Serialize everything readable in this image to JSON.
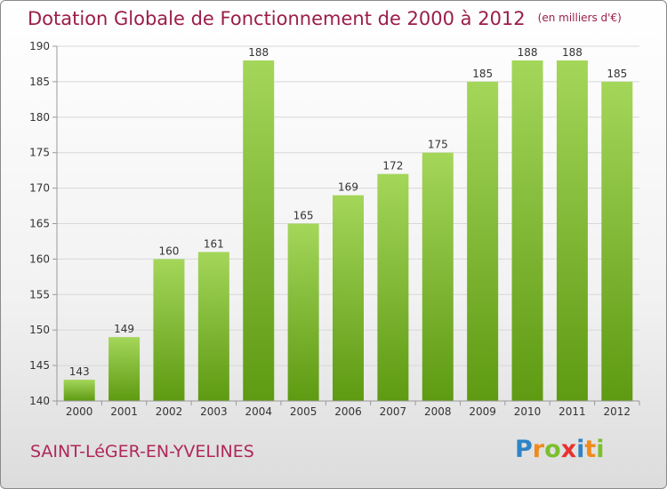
{
  "title": "Dotation Globale de Fonctionnement de 2000 à 2012",
  "subtitle": "(en milliers d'€)",
  "commune": "SAINT-LéGER-EN-YVELINES",
  "logo": {
    "letters": [
      "P",
      "r",
      "o",
      "x",
      "i",
      "t",
      "i"
    ],
    "colors": [
      "#2f84c6",
      "#f08a1c",
      "#7bbf2f",
      "#e8322f",
      "#2f84c6",
      "#f08a1c",
      "#7bbf2f"
    ]
  },
  "colors": {
    "bar_top": "#a4d65a",
    "bar_bottom": "#5e9a12",
    "axis": "#999999",
    "grid": "#d8d8d8"
  },
  "chart_data": {
    "type": "bar",
    "categories": [
      "2000",
      "2001",
      "2002",
      "2003",
      "2004",
      "2005",
      "2006",
      "2007",
      "2008",
      "2009",
      "2010",
      "2011",
      "2012"
    ],
    "values": [
      143,
      149,
      160,
      161,
      188,
      165,
      169,
      172,
      175,
      185,
      188,
      188,
      185
    ],
    "ylim": [
      140,
      190
    ],
    "yticks": [
      140,
      145,
      150,
      155,
      160,
      165,
      170,
      175,
      180,
      185,
      190
    ],
    "grid": true,
    "data_labels": true
  }
}
